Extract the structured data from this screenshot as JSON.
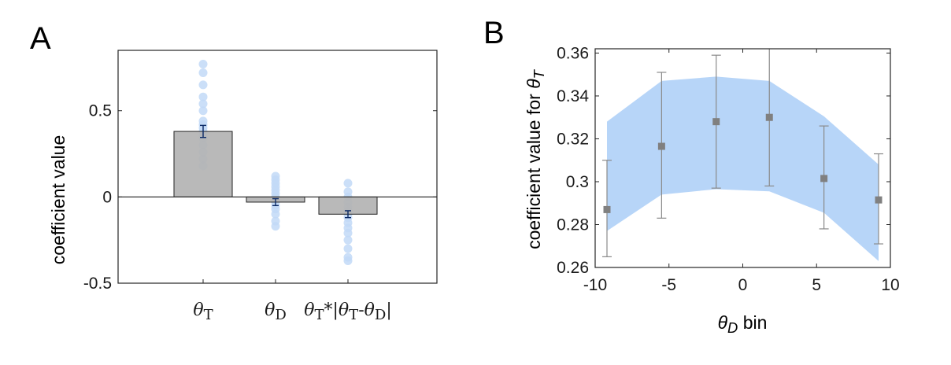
{
  "panels": [
    {
      "letter": "A"
    },
    {
      "letter": "B"
    }
  ],
  "chart_data": [
    {
      "type": "bar",
      "panel": "A",
      "ylabel": "coefficient value",
      "ylim": [
        -0.5,
        0.85
      ],
      "yticks": [
        {
          "value": -0.5,
          "label": "-0.5"
        },
        {
          "value": 0,
          "label": "0"
        },
        {
          "value": 0.5,
          "label": "0.5"
        }
      ],
      "zero_line": true,
      "grid": false,
      "categories": [
        {
          "label": "θ_T",
          "parts": [
            {
              "t": "θ",
              "i": true
            },
            {
              "t": "T",
              "sub": true
            }
          ]
        },
        {
          "label": "θ_D",
          "parts": [
            {
              "t": "θ",
              "i": true
            },
            {
              "t": "D",
              "sub": true
            }
          ]
        },
        {
          "label": "θ_T*|θ_T-θ_D|",
          "parts": [
            {
              "t": "θ",
              "i": true
            },
            {
              "t": "T",
              "sub": true
            },
            {
              "t": "*|"
            },
            {
              "t": "θ",
              "i": true
            },
            {
              "t": "T",
              "sub": true
            },
            {
              "t": "-"
            },
            {
              "t": "θ",
              "i": true
            },
            {
              "t": "D",
              "sub": true
            },
            {
              "t": "|"
            }
          ]
        }
      ],
      "values": [
        0.38,
        -0.03,
        -0.1
      ],
      "errors": [
        0.035,
        0.02,
        0.02
      ],
      "points": [
        [
          0.77,
          0.72,
          0.65,
          0.58,
          0.54,
          0.5,
          0.44,
          0.42,
          0.4,
          0.38,
          0.36,
          0.34,
          0.3,
          0.26,
          0.22,
          0.18
        ],
        [
          0.12,
          0.1,
          0.08,
          0.06,
          0.04,
          0.02,
          0.0,
          -0.02,
          -0.03,
          -0.05,
          -0.07,
          -0.1,
          -0.14,
          -0.17
        ],
        [
          0.08,
          0.03,
          0.0,
          -0.03,
          -0.06,
          -0.08,
          -0.1,
          -0.12,
          -0.15,
          -0.18,
          -0.21,
          -0.25,
          -0.3,
          -0.35,
          -0.37
        ]
      ],
      "colors": {
        "bar": "#b3b3b3",
        "points": "#c2d9f7",
        "error": "#0b2a66"
      }
    },
    {
      "type": "line",
      "panel": "B",
      "xlabel_parts": [
        {
          "t": "θ",
          "i": true
        },
        {
          "t": "D",
          "sub": true,
          "i": true
        },
        {
          "t": " bin"
        }
      ],
      "ylabel_parts": [
        {
          "t": "coefficient value for "
        },
        {
          "t": "θ",
          "i": true
        },
        {
          "t": "T",
          "sub": true,
          "i": true
        }
      ],
      "xlim": [
        -10,
        10
      ],
      "ylim": [
        0.26,
        0.362
      ],
      "xticks": [
        {
          "value": -10,
          "label": "-10"
        },
        {
          "value": -5,
          "label": "-5"
        },
        {
          "value": 0,
          "label": "0"
        },
        {
          "value": 5,
          "label": "5"
        },
        {
          "value": 10,
          "label": "10"
        }
      ],
      "yticks": [
        {
          "value": 0.26,
          "label": "0.26"
        },
        {
          "value": 0.28,
          "label": "0.28"
        },
        {
          "value": 0.3,
          "label": "0.3"
        },
        {
          "value": 0.32,
          "label": "0.32"
        },
        {
          "value": 0.34,
          "label": "0.34"
        },
        {
          "value": 0.36,
          "label": "0.36"
        }
      ],
      "grid": false,
      "x": [
        -9.2,
        -5.5,
        -1.8,
        1.8,
        5.5,
        9.2
      ],
      "y": [
        0.287,
        0.3165,
        0.328,
        0.33,
        0.3015,
        0.2915
      ],
      "err_low": [
        0.265,
        0.283,
        0.297,
        0.298,
        0.278,
        0.271
      ],
      "err_high": [
        0.31,
        0.351,
        0.359,
        0.366,
        0.326,
        0.313
      ],
      "band_x": [
        -9.2,
        -5.5,
        -1.8,
        1.8,
        5.5,
        9.2
      ],
      "band_low": [
        0.277,
        0.294,
        0.2965,
        0.2955,
        0.2855,
        0.263
      ],
      "band_high": [
        0.328,
        0.347,
        0.349,
        0.347,
        0.3305,
        0.308
      ],
      "colors": {
        "band": "#b3d3f8",
        "marker": "#808080",
        "error": "#8a8a8a"
      }
    }
  ]
}
